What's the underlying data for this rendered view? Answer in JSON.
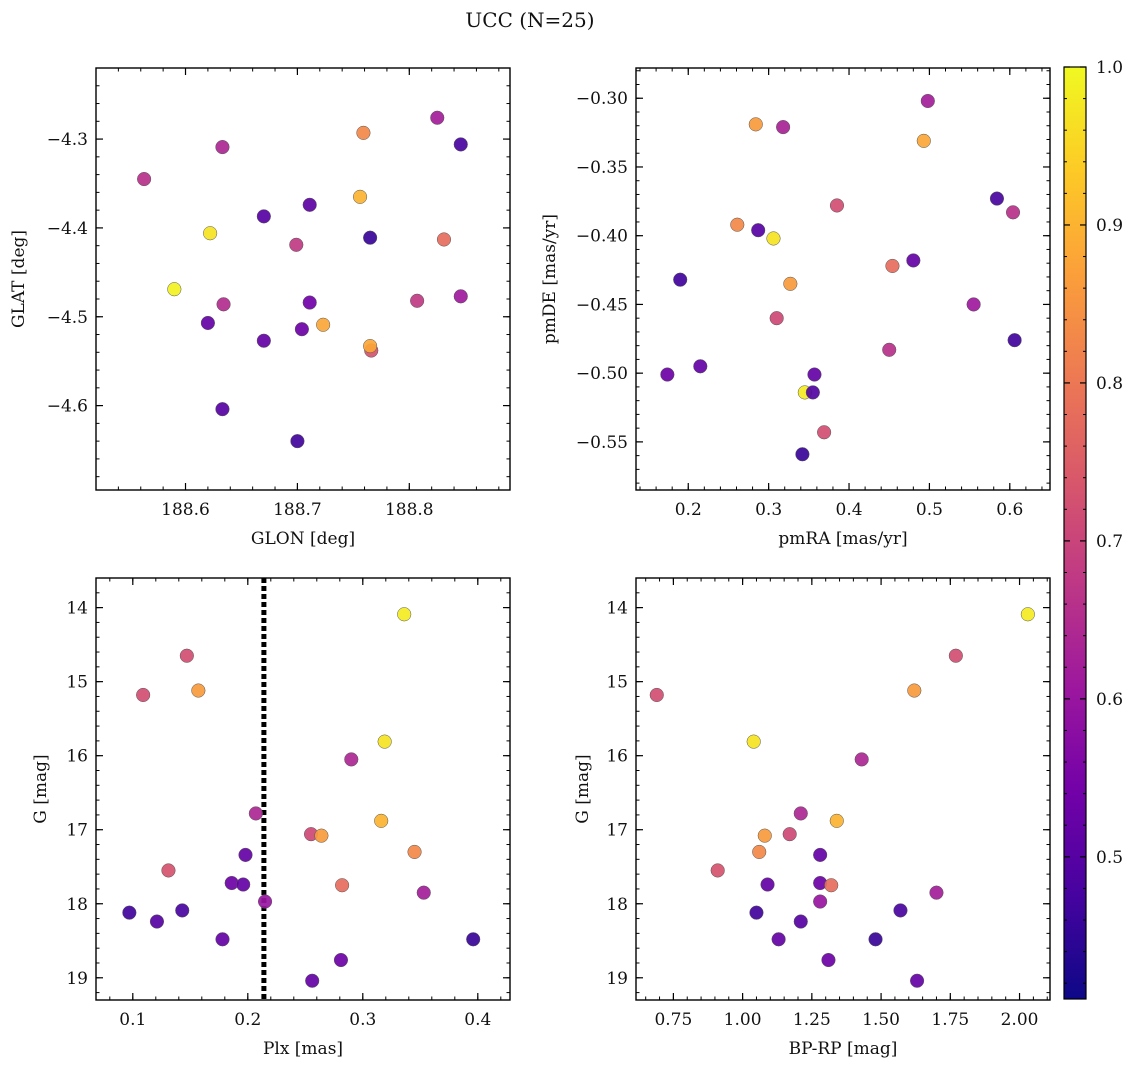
{
  "figure": {
    "title": "UCC (N=25)"
  },
  "colorbar": {
    "min": 0.41,
    "max": 1.0,
    "ticks": [
      0.5,
      0.6,
      0.7,
      0.8,
      0.9,
      1.0
    ],
    "tick_labels": [
      "0.5",
      "0.6",
      "0.7",
      "0.8",
      "0.9",
      "1.0"
    ],
    "colormap": "plasma",
    "colors": [
      "#0d0887",
      "#46039f",
      "#7201a8",
      "#9c179e",
      "#bd3786",
      "#d8576b",
      "#ed7953",
      "#fb9f3a",
      "#fdca26",
      "#f0f921"
    ]
  },
  "chart_data": [
    {
      "type": "scatter",
      "name": "glon-glat",
      "xlabel": "GLON [deg]",
      "ylabel": "GLAT [deg]",
      "xlim": [
        188.52,
        188.89
      ],
      "ylim": [
        -4.695,
        -4.22
      ],
      "y_inverted": false,
      "xticks": [
        188.6,
        188.7,
        188.8
      ],
      "xtick_labels": [
        "188.6",
        "188.7",
        "188.8"
      ],
      "yticks": [
        -4.3,
        -4.4,
        -4.5,
        -4.6
      ],
      "ytick_labels": [
        "−4.3",
        "−4.4",
        "−4.5",
        "−4.6"
      ],
      "points": [
        {
          "x": 188.563,
          "y": -4.345,
          "c": 0.66
        },
        {
          "x": 188.633,
          "y": -4.309,
          "c": 0.64
        },
        {
          "x": 188.759,
          "y": -4.293,
          "c": 0.83
        },
        {
          "x": 188.825,
          "y": -4.276,
          "c": 0.62
        },
        {
          "x": 188.846,
          "y": -4.306,
          "c": 0.48
        },
        {
          "x": 188.756,
          "y": -4.365,
          "c": 0.9
        },
        {
          "x": 188.67,
          "y": -4.387,
          "c": 0.5
        },
        {
          "x": 188.711,
          "y": -4.374,
          "c": 0.51
        },
        {
          "x": 188.622,
          "y": -4.406,
          "c": 0.97
        },
        {
          "x": 188.699,
          "y": -4.419,
          "c": 0.68
        },
        {
          "x": 188.765,
          "y": -4.411,
          "c": 0.46
        },
        {
          "x": 188.831,
          "y": -4.413,
          "c": 0.78
        },
        {
          "x": 188.59,
          "y": -4.469,
          "c": 0.99
        },
        {
          "x": 188.634,
          "y": -4.486,
          "c": 0.65
        },
        {
          "x": 188.711,
          "y": -4.484,
          "c": 0.54
        },
        {
          "x": 188.807,
          "y": -4.482,
          "c": 0.68
        },
        {
          "x": 188.846,
          "y": -4.477,
          "c": 0.61
        },
        {
          "x": 188.62,
          "y": -4.507,
          "c": 0.52
        },
        {
          "x": 188.704,
          "y": -4.514,
          "c": 0.53
        },
        {
          "x": 188.723,
          "y": -4.509,
          "c": 0.88
        },
        {
          "x": 188.67,
          "y": -4.527,
          "c": 0.52
        },
        {
          "x": 188.766,
          "y": -4.538,
          "c": 0.73
        },
        {
          "x": 188.765,
          "y": -4.533,
          "c": 0.88
        },
        {
          "x": 188.633,
          "y": -4.604,
          "c": 0.5
        },
        {
          "x": 188.7,
          "y": -4.64,
          "c": 0.47
        }
      ]
    },
    {
      "type": "scatter",
      "name": "pmra-pmde",
      "xlabel": "pmRA [mas/yr]",
      "ylabel": "pmDE [mas/yr]",
      "xlim": [
        0.135,
        0.65
      ],
      "ylim": [
        -0.585,
        -0.278
      ],
      "y_inverted": false,
      "xticks": [
        0.2,
        0.3,
        0.4,
        0.5,
        0.6
      ],
      "xtick_labels": [
        "0.2",
        "0.3",
        "0.4",
        "0.5",
        "0.6"
      ],
      "yticks": [
        -0.3,
        -0.35,
        -0.4,
        -0.45,
        -0.5,
        -0.55
      ],
      "ytick_labels": [
        "−0.30",
        "−0.35",
        "−0.40",
        "−0.45",
        "−0.50",
        "−0.55"
      ],
      "points": [
        {
          "x": 0.498,
          "y": -0.302,
          "c": 0.62
        },
        {
          "x": 0.284,
          "y": -0.319,
          "c": 0.86
        },
        {
          "x": 0.318,
          "y": -0.321,
          "c": 0.63
        },
        {
          "x": 0.493,
          "y": -0.331,
          "c": 0.88
        },
        {
          "x": 0.584,
          "y": -0.373,
          "c": 0.48
        },
        {
          "x": 0.385,
          "y": -0.378,
          "c": 0.72
        },
        {
          "x": 0.604,
          "y": -0.383,
          "c": 0.66
        },
        {
          "x": 0.261,
          "y": -0.392,
          "c": 0.83
        },
        {
          "x": 0.287,
          "y": -0.396,
          "c": 0.5
        },
        {
          "x": 0.306,
          "y": -0.402,
          "c": 0.97
        },
        {
          "x": 0.48,
          "y": -0.418,
          "c": 0.52
        },
        {
          "x": 0.454,
          "y": -0.422,
          "c": 0.78
        },
        {
          "x": 0.19,
          "y": -0.432,
          "c": 0.47
        },
        {
          "x": 0.327,
          "y": -0.435,
          "c": 0.86
        },
        {
          "x": 0.555,
          "y": -0.45,
          "c": 0.61
        },
        {
          "x": 0.31,
          "y": -0.46,
          "c": 0.71
        },
        {
          "x": 0.606,
          "y": -0.476,
          "c": 0.47
        },
        {
          "x": 0.45,
          "y": -0.483,
          "c": 0.66
        },
        {
          "x": 0.215,
          "y": -0.495,
          "c": 0.52
        },
        {
          "x": 0.174,
          "y": -0.501,
          "c": 0.53
        },
        {
          "x": 0.357,
          "y": -0.501,
          "c": 0.52
        },
        {
          "x": 0.345,
          "y": -0.514,
          "c": 0.98
        },
        {
          "x": 0.355,
          "y": -0.514,
          "c": 0.49
        },
        {
          "x": 0.369,
          "y": -0.543,
          "c": 0.72
        },
        {
          "x": 0.342,
          "y": -0.559,
          "c": 0.46
        }
      ]
    },
    {
      "type": "scatter",
      "name": "plx-g",
      "xlabel": "Plx [mas]",
      "ylabel": "G [mag]",
      "xlim": [
        0.068,
        0.428
      ],
      "ylim": [
        13.6,
        19.3
      ],
      "y_inverted": true,
      "xticks": [
        0.1,
        0.2,
        0.3,
        0.4
      ],
      "xtick_labels": [
        "0.1",
        "0.2",
        "0.3",
        "0.4"
      ],
      "yticks": [
        14,
        15,
        16,
        17,
        18,
        19
      ],
      "ytick_labels": [
        "14",
        "15",
        "16",
        "17",
        "18",
        "19"
      ],
      "vline": {
        "x": 0.214
      },
      "points": [
        {
          "x": 0.336,
          "y": 14.09,
          "c": 0.98
        },
        {
          "x": 0.147,
          "y": 14.65,
          "c": 0.72
        },
        {
          "x": 0.109,
          "y": 15.18,
          "c": 0.72
        },
        {
          "x": 0.157,
          "y": 15.12,
          "c": 0.86
        },
        {
          "x": 0.319,
          "y": 15.81,
          "c": 0.97
        },
        {
          "x": 0.29,
          "y": 16.05,
          "c": 0.64
        },
        {
          "x": 0.207,
          "y": 16.78,
          "c": 0.64
        },
        {
          "x": 0.316,
          "y": 16.88,
          "c": 0.9
        },
        {
          "x": 0.255,
          "y": 17.06,
          "c": 0.71
        },
        {
          "x": 0.264,
          "y": 17.08,
          "c": 0.86
        },
        {
          "x": 0.345,
          "y": 17.3,
          "c": 0.83
        },
        {
          "x": 0.198,
          "y": 17.34,
          "c": 0.52
        },
        {
          "x": 0.131,
          "y": 17.55,
          "c": 0.73
        },
        {
          "x": 0.186,
          "y": 17.72,
          "c": 0.53
        },
        {
          "x": 0.196,
          "y": 17.74,
          "c": 0.52
        },
        {
          "x": 0.282,
          "y": 17.75,
          "c": 0.78
        },
        {
          "x": 0.353,
          "y": 17.85,
          "c": 0.62
        },
        {
          "x": 0.215,
          "y": 17.97,
          "c": 0.6
        },
        {
          "x": 0.097,
          "y": 18.12,
          "c": 0.47
        },
        {
          "x": 0.143,
          "y": 18.09,
          "c": 0.48
        },
        {
          "x": 0.121,
          "y": 18.24,
          "c": 0.5
        },
        {
          "x": 0.178,
          "y": 18.48,
          "c": 0.52
        },
        {
          "x": 0.396,
          "y": 18.48,
          "c": 0.46
        },
        {
          "x": 0.281,
          "y": 18.76,
          "c": 0.53
        },
        {
          "x": 0.256,
          "y": 19.04,
          "c": 0.52
        }
      ]
    },
    {
      "type": "scatter",
      "name": "bprp-g",
      "xlabel": "BP-RP [mag]",
      "ylabel": "G [mag]",
      "xlim": [
        0.615,
        2.11
      ],
      "ylim": [
        13.6,
        19.3
      ],
      "y_inverted": true,
      "xticks": [
        0.75,
        1.0,
        1.25,
        1.5,
        1.75,
        2.0
      ],
      "xtick_labels": [
        "0.75",
        "1.00",
        "1.25",
        "1.50",
        "1.75",
        "2.00"
      ],
      "yticks": [
        14,
        15,
        16,
        17,
        18,
        19
      ],
      "ytick_labels": [
        "14",
        "15",
        "16",
        "17",
        "18",
        "19"
      ],
      "points": [
        {
          "x": 2.03,
          "y": 14.09,
          "c": 0.98
        },
        {
          "x": 1.77,
          "y": 14.65,
          "c": 0.72
        },
        {
          "x": 0.69,
          "y": 15.18,
          "c": 0.72
        },
        {
          "x": 1.62,
          "y": 15.12,
          "c": 0.86
        },
        {
          "x": 1.04,
          "y": 15.81,
          "c": 0.97
        },
        {
          "x": 1.43,
          "y": 16.05,
          "c": 0.64
        },
        {
          "x": 1.21,
          "y": 16.78,
          "c": 0.64
        },
        {
          "x": 1.34,
          "y": 16.88,
          "c": 0.9
        },
        {
          "x": 1.17,
          "y": 17.06,
          "c": 0.71
        },
        {
          "x": 1.08,
          "y": 17.08,
          "c": 0.86
        },
        {
          "x": 1.06,
          "y": 17.3,
          "c": 0.83
        },
        {
          "x": 1.28,
          "y": 17.34,
          "c": 0.52
        },
        {
          "x": 0.91,
          "y": 17.55,
          "c": 0.73
        },
        {
          "x": 1.28,
          "y": 17.72,
          "c": 0.53
        },
        {
          "x": 1.09,
          "y": 17.74,
          "c": 0.52
        },
        {
          "x": 1.32,
          "y": 17.75,
          "c": 0.78
        },
        {
          "x": 1.7,
          "y": 17.85,
          "c": 0.62
        },
        {
          "x": 1.28,
          "y": 17.97,
          "c": 0.6
        },
        {
          "x": 1.05,
          "y": 18.12,
          "c": 0.47
        },
        {
          "x": 1.57,
          "y": 18.09,
          "c": 0.48
        },
        {
          "x": 1.21,
          "y": 18.24,
          "c": 0.5
        },
        {
          "x": 1.13,
          "y": 18.48,
          "c": 0.52
        },
        {
          "x": 1.48,
          "y": 18.48,
          "c": 0.46
        },
        {
          "x": 1.31,
          "y": 18.76,
          "c": 0.53
        },
        {
          "x": 1.63,
          "y": 19.04,
          "c": 0.52
        }
      ]
    }
  ]
}
